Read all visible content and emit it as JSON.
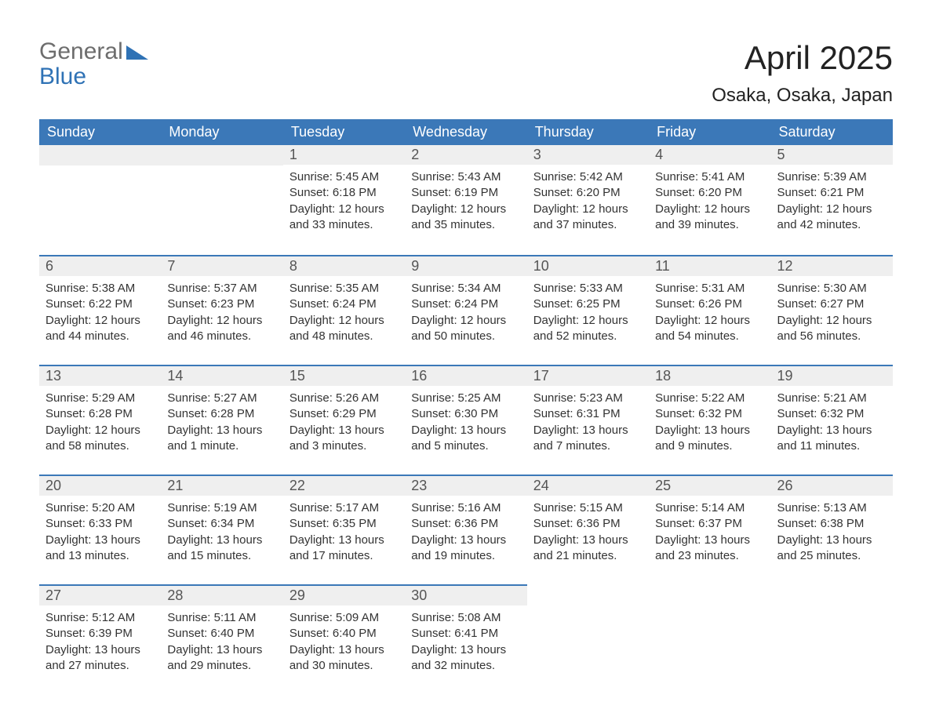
{
  "logo": {
    "word1": "General",
    "word2": "Blue"
  },
  "title": "April 2025",
  "location": "Osaka, Osaka, Japan",
  "colors": {
    "header_bg": "#3b78b8",
    "header_text": "#ffffff",
    "daynum_bg": "#efefef",
    "rule": "#3b78b8",
    "text": "#333333",
    "logo_gray": "#6d6d6d",
    "logo_blue": "#2f72b5",
    "background": "#ffffff"
  },
  "weekdays": [
    "Sunday",
    "Monday",
    "Tuesday",
    "Wednesday",
    "Thursday",
    "Friday",
    "Saturday"
  ],
  "weeks": [
    [
      null,
      null,
      {
        "n": "1",
        "sunrise": "Sunrise: 5:45 AM",
        "sunset": "Sunset: 6:18 PM",
        "d1": "Daylight: 12 hours",
        "d2": "and 33 minutes."
      },
      {
        "n": "2",
        "sunrise": "Sunrise: 5:43 AM",
        "sunset": "Sunset: 6:19 PM",
        "d1": "Daylight: 12 hours",
        "d2": "and 35 minutes."
      },
      {
        "n": "3",
        "sunrise": "Sunrise: 5:42 AM",
        "sunset": "Sunset: 6:20 PM",
        "d1": "Daylight: 12 hours",
        "d2": "and 37 minutes."
      },
      {
        "n": "4",
        "sunrise": "Sunrise: 5:41 AM",
        "sunset": "Sunset: 6:20 PM",
        "d1": "Daylight: 12 hours",
        "d2": "and 39 minutes."
      },
      {
        "n": "5",
        "sunrise": "Sunrise: 5:39 AM",
        "sunset": "Sunset: 6:21 PM",
        "d1": "Daylight: 12 hours",
        "d2": "and 42 minutes."
      }
    ],
    [
      {
        "n": "6",
        "sunrise": "Sunrise: 5:38 AM",
        "sunset": "Sunset: 6:22 PM",
        "d1": "Daylight: 12 hours",
        "d2": "and 44 minutes."
      },
      {
        "n": "7",
        "sunrise": "Sunrise: 5:37 AM",
        "sunset": "Sunset: 6:23 PM",
        "d1": "Daylight: 12 hours",
        "d2": "and 46 minutes."
      },
      {
        "n": "8",
        "sunrise": "Sunrise: 5:35 AM",
        "sunset": "Sunset: 6:24 PM",
        "d1": "Daylight: 12 hours",
        "d2": "and 48 minutes."
      },
      {
        "n": "9",
        "sunrise": "Sunrise: 5:34 AM",
        "sunset": "Sunset: 6:24 PM",
        "d1": "Daylight: 12 hours",
        "d2": "and 50 minutes."
      },
      {
        "n": "10",
        "sunrise": "Sunrise: 5:33 AM",
        "sunset": "Sunset: 6:25 PM",
        "d1": "Daylight: 12 hours",
        "d2": "and 52 minutes."
      },
      {
        "n": "11",
        "sunrise": "Sunrise: 5:31 AM",
        "sunset": "Sunset: 6:26 PM",
        "d1": "Daylight: 12 hours",
        "d2": "and 54 minutes."
      },
      {
        "n": "12",
        "sunrise": "Sunrise: 5:30 AM",
        "sunset": "Sunset: 6:27 PM",
        "d1": "Daylight: 12 hours",
        "d2": "and 56 minutes."
      }
    ],
    [
      {
        "n": "13",
        "sunrise": "Sunrise: 5:29 AM",
        "sunset": "Sunset: 6:28 PM",
        "d1": "Daylight: 12 hours",
        "d2": "and 58 minutes."
      },
      {
        "n": "14",
        "sunrise": "Sunrise: 5:27 AM",
        "sunset": "Sunset: 6:28 PM",
        "d1": "Daylight: 13 hours",
        "d2": "and 1 minute."
      },
      {
        "n": "15",
        "sunrise": "Sunrise: 5:26 AM",
        "sunset": "Sunset: 6:29 PM",
        "d1": "Daylight: 13 hours",
        "d2": "and 3 minutes."
      },
      {
        "n": "16",
        "sunrise": "Sunrise: 5:25 AM",
        "sunset": "Sunset: 6:30 PM",
        "d1": "Daylight: 13 hours",
        "d2": "and 5 minutes."
      },
      {
        "n": "17",
        "sunrise": "Sunrise: 5:23 AM",
        "sunset": "Sunset: 6:31 PM",
        "d1": "Daylight: 13 hours",
        "d2": "and 7 minutes."
      },
      {
        "n": "18",
        "sunrise": "Sunrise: 5:22 AM",
        "sunset": "Sunset: 6:32 PM",
        "d1": "Daylight: 13 hours",
        "d2": "and 9 minutes."
      },
      {
        "n": "19",
        "sunrise": "Sunrise: 5:21 AM",
        "sunset": "Sunset: 6:32 PM",
        "d1": "Daylight: 13 hours",
        "d2": "and 11 minutes."
      }
    ],
    [
      {
        "n": "20",
        "sunrise": "Sunrise: 5:20 AM",
        "sunset": "Sunset: 6:33 PM",
        "d1": "Daylight: 13 hours",
        "d2": "and 13 minutes."
      },
      {
        "n": "21",
        "sunrise": "Sunrise: 5:19 AM",
        "sunset": "Sunset: 6:34 PM",
        "d1": "Daylight: 13 hours",
        "d2": "and 15 minutes."
      },
      {
        "n": "22",
        "sunrise": "Sunrise: 5:17 AM",
        "sunset": "Sunset: 6:35 PM",
        "d1": "Daylight: 13 hours",
        "d2": "and 17 minutes."
      },
      {
        "n": "23",
        "sunrise": "Sunrise: 5:16 AM",
        "sunset": "Sunset: 6:36 PM",
        "d1": "Daylight: 13 hours",
        "d2": "and 19 minutes."
      },
      {
        "n": "24",
        "sunrise": "Sunrise: 5:15 AM",
        "sunset": "Sunset: 6:36 PM",
        "d1": "Daylight: 13 hours",
        "d2": "and 21 minutes."
      },
      {
        "n": "25",
        "sunrise": "Sunrise: 5:14 AM",
        "sunset": "Sunset: 6:37 PM",
        "d1": "Daylight: 13 hours",
        "d2": "and 23 minutes."
      },
      {
        "n": "26",
        "sunrise": "Sunrise: 5:13 AM",
        "sunset": "Sunset: 6:38 PM",
        "d1": "Daylight: 13 hours",
        "d2": "and 25 minutes."
      }
    ],
    [
      {
        "n": "27",
        "sunrise": "Sunrise: 5:12 AM",
        "sunset": "Sunset: 6:39 PM",
        "d1": "Daylight: 13 hours",
        "d2": "and 27 minutes."
      },
      {
        "n": "28",
        "sunrise": "Sunrise: 5:11 AM",
        "sunset": "Sunset: 6:40 PM",
        "d1": "Daylight: 13 hours",
        "d2": "and 29 minutes."
      },
      {
        "n": "29",
        "sunrise": "Sunrise: 5:09 AM",
        "sunset": "Sunset: 6:40 PM",
        "d1": "Daylight: 13 hours",
        "d2": "and 30 minutes."
      },
      {
        "n": "30",
        "sunrise": "Sunrise: 5:08 AM",
        "sunset": "Sunset: 6:41 PM",
        "d1": "Daylight: 13 hours",
        "d2": "and 32 minutes."
      },
      null,
      null,
      null
    ]
  ]
}
